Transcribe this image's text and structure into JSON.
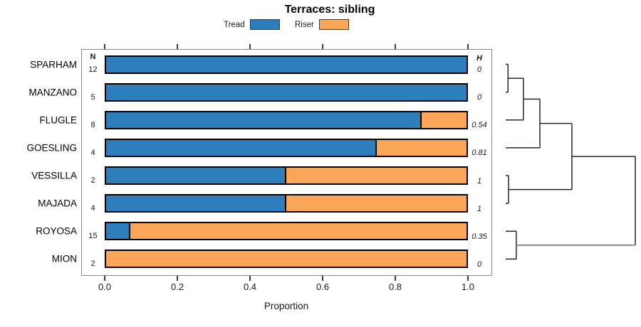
{
  "title": "Terraces: sibling",
  "legend": {
    "items": [
      {
        "label": "Tread",
        "color": "#2E7EBC"
      },
      {
        "label": "Riser",
        "color": "#FCA65A"
      }
    ]
  },
  "columns": {
    "n_header": "N",
    "h_header": "H"
  },
  "axis": {
    "label": "Proportion",
    "ticks": [
      "0.0",
      "0.2",
      "0.4",
      "0.6",
      "0.8",
      "1.0"
    ],
    "range": [
      0,
      1
    ]
  },
  "colors": {
    "tread": "#2E7EBC",
    "riser": "#FCA65A",
    "bar_border": "#000000",
    "box_border": "#8a8a8a",
    "dendro_line": "#262626",
    "dendro_gray_line": "#8c8c8c"
  },
  "chart_data": {
    "type": "bar",
    "orientation": "horizontal-stacked",
    "title": "Terraces: sibling",
    "xlabel": "Proportion",
    "xlim": [
      0,
      1
    ],
    "grid": false,
    "legend_position": "top",
    "series_labels": [
      "Tread",
      "Riser"
    ],
    "categories": [
      "SPARHAM",
      "MANZANO",
      "FLUGLE",
      "GOESLING",
      "VESSILLA",
      "MAJADA",
      "ROYOSA",
      "MION"
    ],
    "rows": [
      {
        "label": "SPARHAM",
        "n": 12,
        "tread": 1.0,
        "riser": 0.0,
        "h": "0"
      },
      {
        "label": "MANZANO",
        "n": 5,
        "tread": 1.0,
        "riser": 0.0,
        "h": "0"
      },
      {
        "label": "FLUGLE",
        "n": 8,
        "tread": 0.875,
        "riser": 0.125,
        "h": "0.54"
      },
      {
        "label": "GOESLING",
        "n": 4,
        "tread": 0.75,
        "riser": 0.25,
        "h": "0.81"
      },
      {
        "label": "VESSILLA",
        "n": 2,
        "tread": 0.5,
        "riser": 0.5,
        "h": "1"
      },
      {
        "label": "MAJADA",
        "n": 4,
        "tread": 0.5,
        "riser": 0.5,
        "h": "1"
      },
      {
        "label": "ROYOSA",
        "n": 15,
        "tread": 0.0667,
        "riser": 0.9333,
        "h": "0.35"
      },
      {
        "label": "MION",
        "n": 2,
        "tread": 0.0,
        "riser": 1.0,
        "h": "0"
      }
    ],
    "dendrogram": {
      "description": "right-side cluster tree; leaf indices refer to rows; heights normalized 0-1",
      "tree": {
        "height": 1.0,
        "children": [
          {
            "height": 0.511,
            "children": [
              {
                "height": 0.264,
                "children": [
                  {
                    "height": 0.137,
                    "children": [
                      {
                        "height": 0.018,
                        "children": [
                          {
                            "leaf": 0
                          },
                          {
                            "leaf": 1
                          }
                        ]
                      },
                      {
                        "leaf": 2
                      }
                    ]
                  },
                  {
                    "leaf": 3
                  }
                ]
              },
              {
                "height": 0.022,
                "children": [
                  {
                    "leaf": 4
                  },
                  {
                    "leaf": 5
                  }
                ]
              }
            ]
          },
          {
            "height": 0.082,
            "gray_link": true,
            "children": [
              {
                "leaf": 6
              },
              {
                "leaf": 7
              }
            ]
          }
        ]
      }
    }
  }
}
